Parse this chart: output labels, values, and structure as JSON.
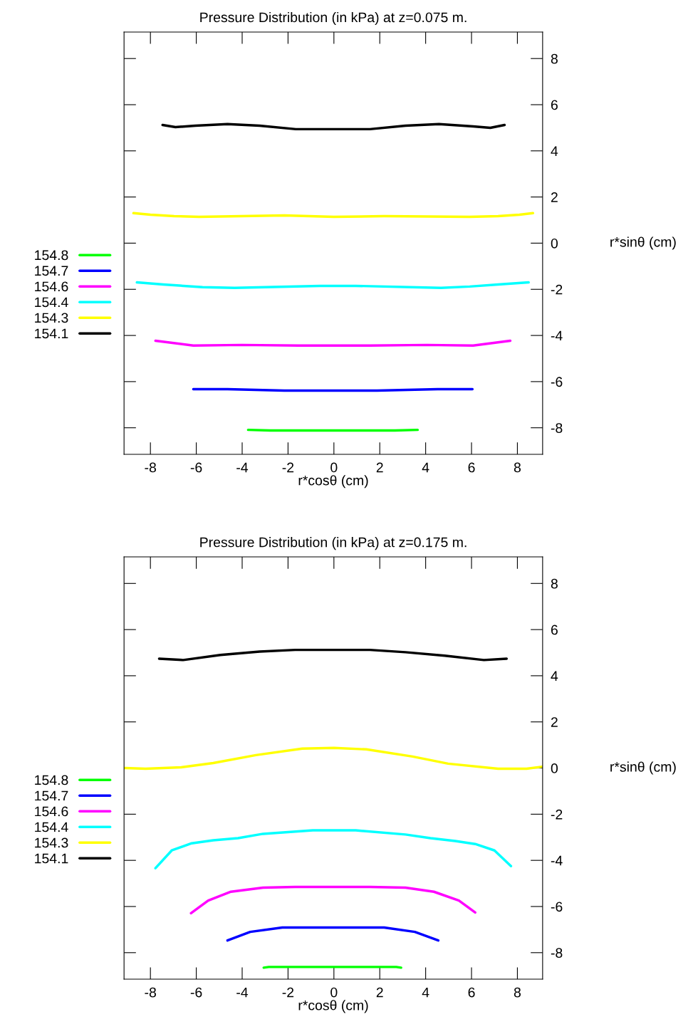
{
  "chart_data": [
    {
      "type": "line",
      "title": "Pressure Distribution (in kPa) at z=0.075 m.",
      "xlabel": "r*cosθ (cm)",
      "ylabel": "r*sinθ (cm)",
      "xlim": [
        -9.15,
        9.1
      ],
      "ylim": [
        -9.15,
        9.15
      ],
      "xticks": [
        -8,
        -6,
        -4,
        -2,
        0,
        2,
        4,
        6,
        8
      ],
      "yticks": [
        -8,
        -6,
        -4,
        -2,
        0,
        2,
        4,
        6,
        8
      ],
      "grid": false,
      "legend": "left",
      "marker": "none",
      "line_style": "solid",
      "series": [
        {
          "name": "154.8",
          "color": "#00ff00",
          "x": [
            -3.74,
            -2.78,
            2.66,
            3.65
          ],
          "values": [
            -8.09,
            -8.12,
            -8.12,
            -8.09
          ]
        },
        {
          "name": "154.7",
          "color": "#0000ff",
          "x": [
            -6.13,
            -4.64,
            -2.16,
            1.88,
            4.52,
            6.04
          ],
          "values": [
            -6.33,
            -6.33,
            -6.39,
            -6.39,
            -6.33,
            -6.33
          ]
        },
        {
          "name": "154.6",
          "color": "#ff00ff",
          "x": [
            -7.78,
            -6.13,
            -4.02,
            -1.54,
            1.57,
            4.05,
            6.07,
            7.69
          ],
          "values": [
            -4.23,
            -4.44,
            -4.41,
            -4.44,
            -4.44,
            -4.41,
            -4.44,
            -4.23
          ]
        },
        {
          "name": "154.4",
          "color": "#00ffff",
          "x": [
            -8.59,
            -7.44,
            -5.73,
            -4.33,
            -0.61,
            0.95,
            4.67,
            5.92,
            7.16,
            8.49
          ],
          "values": [
            -1.7,
            -1.79,
            -1.91,
            -1.94,
            -1.85,
            -1.85,
            -1.94,
            -1.88,
            -1.79,
            -1.7
          ]
        },
        {
          "name": "154.3",
          "color": "#ffff00",
          "x": [
            -8.74,
            -8.0,
            -6.97,
            -5.88,
            -2.16,
            0,
            2.19,
            5.92,
            7.16,
            8.09,
            8.68
          ],
          "values": [
            1.3,
            1.23,
            1.17,
            1.14,
            1.2,
            1.14,
            1.17,
            1.14,
            1.17,
            1.23,
            1.3
          ]
        },
        {
          "name": "154.1",
          "color": "#000000",
          "x": [
            -7.47,
            -6.91,
            -6.04,
            -4.64,
            -3.24,
            -1.66,
            1.57,
            3.12,
            4.58,
            6.07,
            6.82,
            7.44
          ],
          "values": [
            5.12,
            5.03,
            5.09,
            5.16,
            5.09,
            4.94,
            4.94,
            5.09,
            5.16,
            5.06,
            5.0,
            5.12
          ]
        }
      ]
    },
    {
      "type": "line",
      "title": "Pressure Distribution (in kPa) at z=0.175 m.",
      "xlabel": "r*cosθ (cm)",
      "ylabel": "r*sinθ (cm)",
      "xlim": [
        -9.15,
        9.1
      ],
      "ylim": [
        -9.15,
        9.15
      ],
      "xticks": [
        -8,
        -6,
        -4,
        -2,
        0,
        2,
        4,
        6,
        8
      ],
      "yticks": [
        -8,
        -6,
        -4,
        -2,
        0,
        2,
        4,
        6,
        8
      ],
      "grid": false,
      "legend": "left",
      "marker": "none",
      "line_style": "solid",
      "series": [
        {
          "name": "154.8",
          "color": "#00ff00",
          "x": [
            -3.06,
            -2.84,
            2.72,
            2.93
          ],
          "values": [
            -8.65,
            -8.62,
            -8.62,
            -8.65
          ]
        },
        {
          "name": "154.7",
          "color": "#0000ff",
          "x": [
            -4.64,
            -3.65,
            -2.25,
            2.19,
            3.53,
            4.55
          ],
          "values": [
            -7.47,
            -7.1,
            -6.91,
            -6.91,
            -7.1,
            -7.47
          ]
        },
        {
          "name": "154.6",
          "color": "#ff00ff",
          "x": [
            -6.23,
            -5.48,
            -4.49,
            -3.09,
            -1.69,
            1.57,
            3.12,
            4.36,
            5.45,
            6.16
          ],
          "values": [
            -6.29,
            -5.74,
            -5.36,
            -5.18,
            -5.15,
            -5.15,
            -5.18,
            -5.36,
            -5.74,
            -6.26
          ]
        },
        {
          "name": "154.4",
          "color": "#00ffff",
          "x": [
            -7.78,
            -7.07,
            -6.2,
            -5.26,
            -4.18,
            -3.09,
            -0.92,
            0.95,
            3.12,
            4.21,
            5.29,
            6.16,
            7.0,
            7.72
          ],
          "values": [
            -4.34,
            -3.57,
            -3.26,
            -3.13,
            -3.04,
            -2.85,
            -2.7,
            -2.7,
            -2.88,
            -3.04,
            -3.16,
            -3.29,
            -3.57,
            -4.25
          ]
        },
        {
          "name": "154.3",
          "color": "#ffff00",
          "x": [
            -9.11,
            -8.21,
            -6.66,
            -5.26,
            -3.4,
            -1.38,
            0,
            1.41,
            3.43,
            4.98,
            7.16,
            8.4,
            9.08
          ],
          "values": [
            0,
            -0.03,
            0.03,
            0.22,
            0.56,
            0.84,
            0.87,
            0.81,
            0.5,
            0.19,
            -0.03,
            -0.03,
            0.06
          ]
        },
        {
          "name": "154.1",
          "color": "#000000",
          "x": [
            -7.62,
            -6.57,
            -4.95,
            -3.24,
            -1.69,
            1.57,
            3.12,
            4.83,
            6.54,
            7.53
          ],
          "values": [
            4.74,
            4.68,
            4.9,
            5.05,
            5.12,
            5.12,
            5.02,
            4.87,
            4.68,
            4.74
          ]
        }
      ]
    }
  ]
}
